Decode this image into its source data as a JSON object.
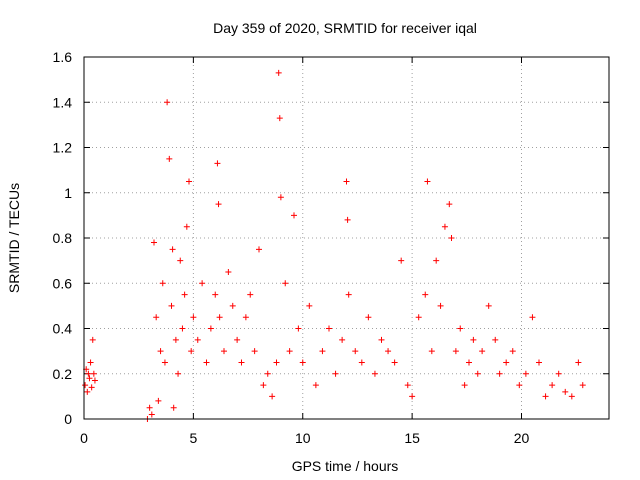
{
  "chart_data": {
    "type": "scatter",
    "title": "Day 359 of 2020, SRMTID for receiver iqal",
    "xlabel": "GPS time / hours",
    "ylabel": "SRMTID / TECUs",
    "xlim": [
      0,
      24
    ],
    "ylim": [
      0,
      1.6
    ],
    "xticks": [
      0,
      5,
      10,
      15,
      20
    ],
    "xtick_labels": [
      "0",
      "5",
      "10",
      "15",
      "20"
    ],
    "yticks": [
      0,
      0.2,
      0.4,
      0.6,
      0.8,
      1.0,
      1.2,
      1.4,
      1.6
    ],
    "ytick_labels": [
      "0",
      "0.2",
      "0.4",
      "0.6",
      "0.8",
      "1",
      "1.2",
      "1.4",
      "1.6"
    ],
    "grid": true,
    "marker": "+",
    "color": "#ff0000",
    "series": [
      {
        "name": "SRMTID",
        "x": [
          0.05,
          0.1,
          0.15,
          0.2,
          0.25,
          0.3,
          0.35,
          0.4,
          0.45,
          0.5,
          2.9,
          3.0,
          3.1,
          3.2,
          3.3,
          3.4,
          3.5,
          3.6,
          3.7,
          3.8,
          3.9,
          4.0,
          4.05,
          4.1,
          4.2,
          4.3,
          4.4,
          4.5,
          4.6,
          4.7,
          4.8,
          4.9,
          5.0,
          5.2,
          5.4,
          5.6,
          5.8,
          6.0,
          6.1,
          6.15,
          6.2,
          6.4,
          6.6,
          6.8,
          7.0,
          7.2,
          7.4,
          7.6,
          7.8,
          8.0,
          8.2,
          8.4,
          8.6,
          8.8,
          8.9,
          8.95,
          9.0,
          9.2,
          9.4,
          9.6,
          9.8,
          10.0,
          10.3,
          10.6,
          10.9,
          11.2,
          11.5,
          11.8,
          12.0,
          12.05,
          12.1,
          12.4,
          12.7,
          13.0,
          13.3,
          13.6,
          13.9,
          14.2,
          14.5,
          14.8,
          15.0,
          15.3,
          15.6,
          15.7,
          15.9,
          16.1,
          16.3,
          16.5,
          16.7,
          16.8,
          17.0,
          17.2,
          17.4,
          17.6,
          17.8,
          18.0,
          18.2,
          18.5,
          18.8,
          19.0,
          19.3,
          19.6,
          19.9,
          20.2,
          20.5,
          20.8,
          21.1,
          21.4,
          21.7,
          22.0,
          22.3,
          22.6,
          22.8
        ],
        "y": [
          0.15,
          0.22,
          0.12,
          0.2,
          0.18,
          0.25,
          0.14,
          0.35,
          0.2,
          0.17,
          0.0,
          0.05,
          0.02,
          0.78,
          0.45,
          0.08,
          0.3,
          0.6,
          0.25,
          1.4,
          1.15,
          0.5,
          0.75,
          0.05,
          0.35,
          0.2,
          0.7,
          0.4,
          0.55,
          0.85,
          1.05,
          0.3,
          0.45,
          0.35,
          0.6,
          0.25,
          0.4,
          0.55,
          1.13,
          0.95,
          0.45,
          0.3,
          0.65,
          0.5,
          0.35,
          0.25,
          0.45,
          0.55,
          0.3,
          0.75,
          0.15,
          0.2,
          0.1,
          0.25,
          1.53,
          1.33,
          0.98,
          0.6,
          0.3,
          0.9,
          0.4,
          0.25,
          0.5,
          0.15,
          0.3,
          0.4,
          0.2,
          0.35,
          1.05,
          0.88,
          0.55,
          0.3,
          0.25,
          0.45,
          0.2,
          0.35,
          0.3,
          0.25,
          0.7,
          0.15,
          0.1,
          0.45,
          0.55,
          1.05,
          0.3,
          0.7,
          0.5,
          0.85,
          0.95,
          0.8,
          0.3,
          0.4,
          0.15,
          0.25,
          0.35,
          0.2,
          0.3,
          0.5,
          0.35,
          0.2,
          0.25,
          0.3,
          0.15,
          0.2,
          0.45,
          0.25,
          0.1,
          0.15,
          0.2,
          0.12,
          0.1,
          0.25,
          0.15
        ]
      }
    ]
  }
}
